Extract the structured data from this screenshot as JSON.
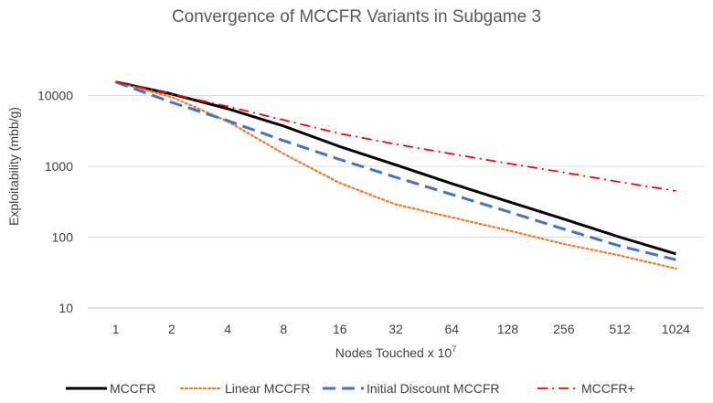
{
  "chart_data": {
    "type": "line",
    "title": "Convergence of MCCFR Variants in Subgame 3",
    "xlabel": "Nodes Touched x 10",
    "xlabel_superscript": "7",
    "ylabel": "Exploitability (mbb/g)",
    "yscale": "log",
    "ylim": [
      10,
      100000
    ],
    "y_ticks": [
      10,
      100,
      1000,
      10000
    ],
    "y_tick_labels": [
      "10",
      "100",
      "1000",
      "10000"
    ],
    "categories": [
      "1",
      "2",
      "4",
      "8",
      "16",
      "32",
      "64",
      "128",
      "256",
      "512",
      "1024"
    ],
    "grid": true,
    "legend_position": "bottom",
    "series": [
      {
        "name": "MCCFR",
        "color": "#000000",
        "dash": "solid",
        "values": [
          15500,
          10500,
          6500,
          3700,
          1900,
          1050,
          570,
          320,
          180,
          100,
          58
        ]
      },
      {
        "name": "Linear MCCFR",
        "color": "#ED7D31",
        "dash": "dotted",
        "values": [
          15500,
          9500,
          4300,
          1500,
          580,
          290,
          190,
          125,
          80,
          55,
          36
        ]
      },
      {
        "name": "Initial Discount MCCFR",
        "color": "#4472C4",
        "dash": "dash",
        "values": [
          15500,
          8000,
          4400,
          2300,
          1250,
          700,
          400,
          230,
          130,
          75,
          48
        ]
      },
      {
        "name": "MCCFR+",
        "color": "#FF0000",
        "dash": "dashdot",
        "values": [
          15500,
          10500,
          7000,
          4500,
          2900,
          2050,
          1500,
          1100,
          820,
          600,
          450
        ]
      }
    ]
  }
}
